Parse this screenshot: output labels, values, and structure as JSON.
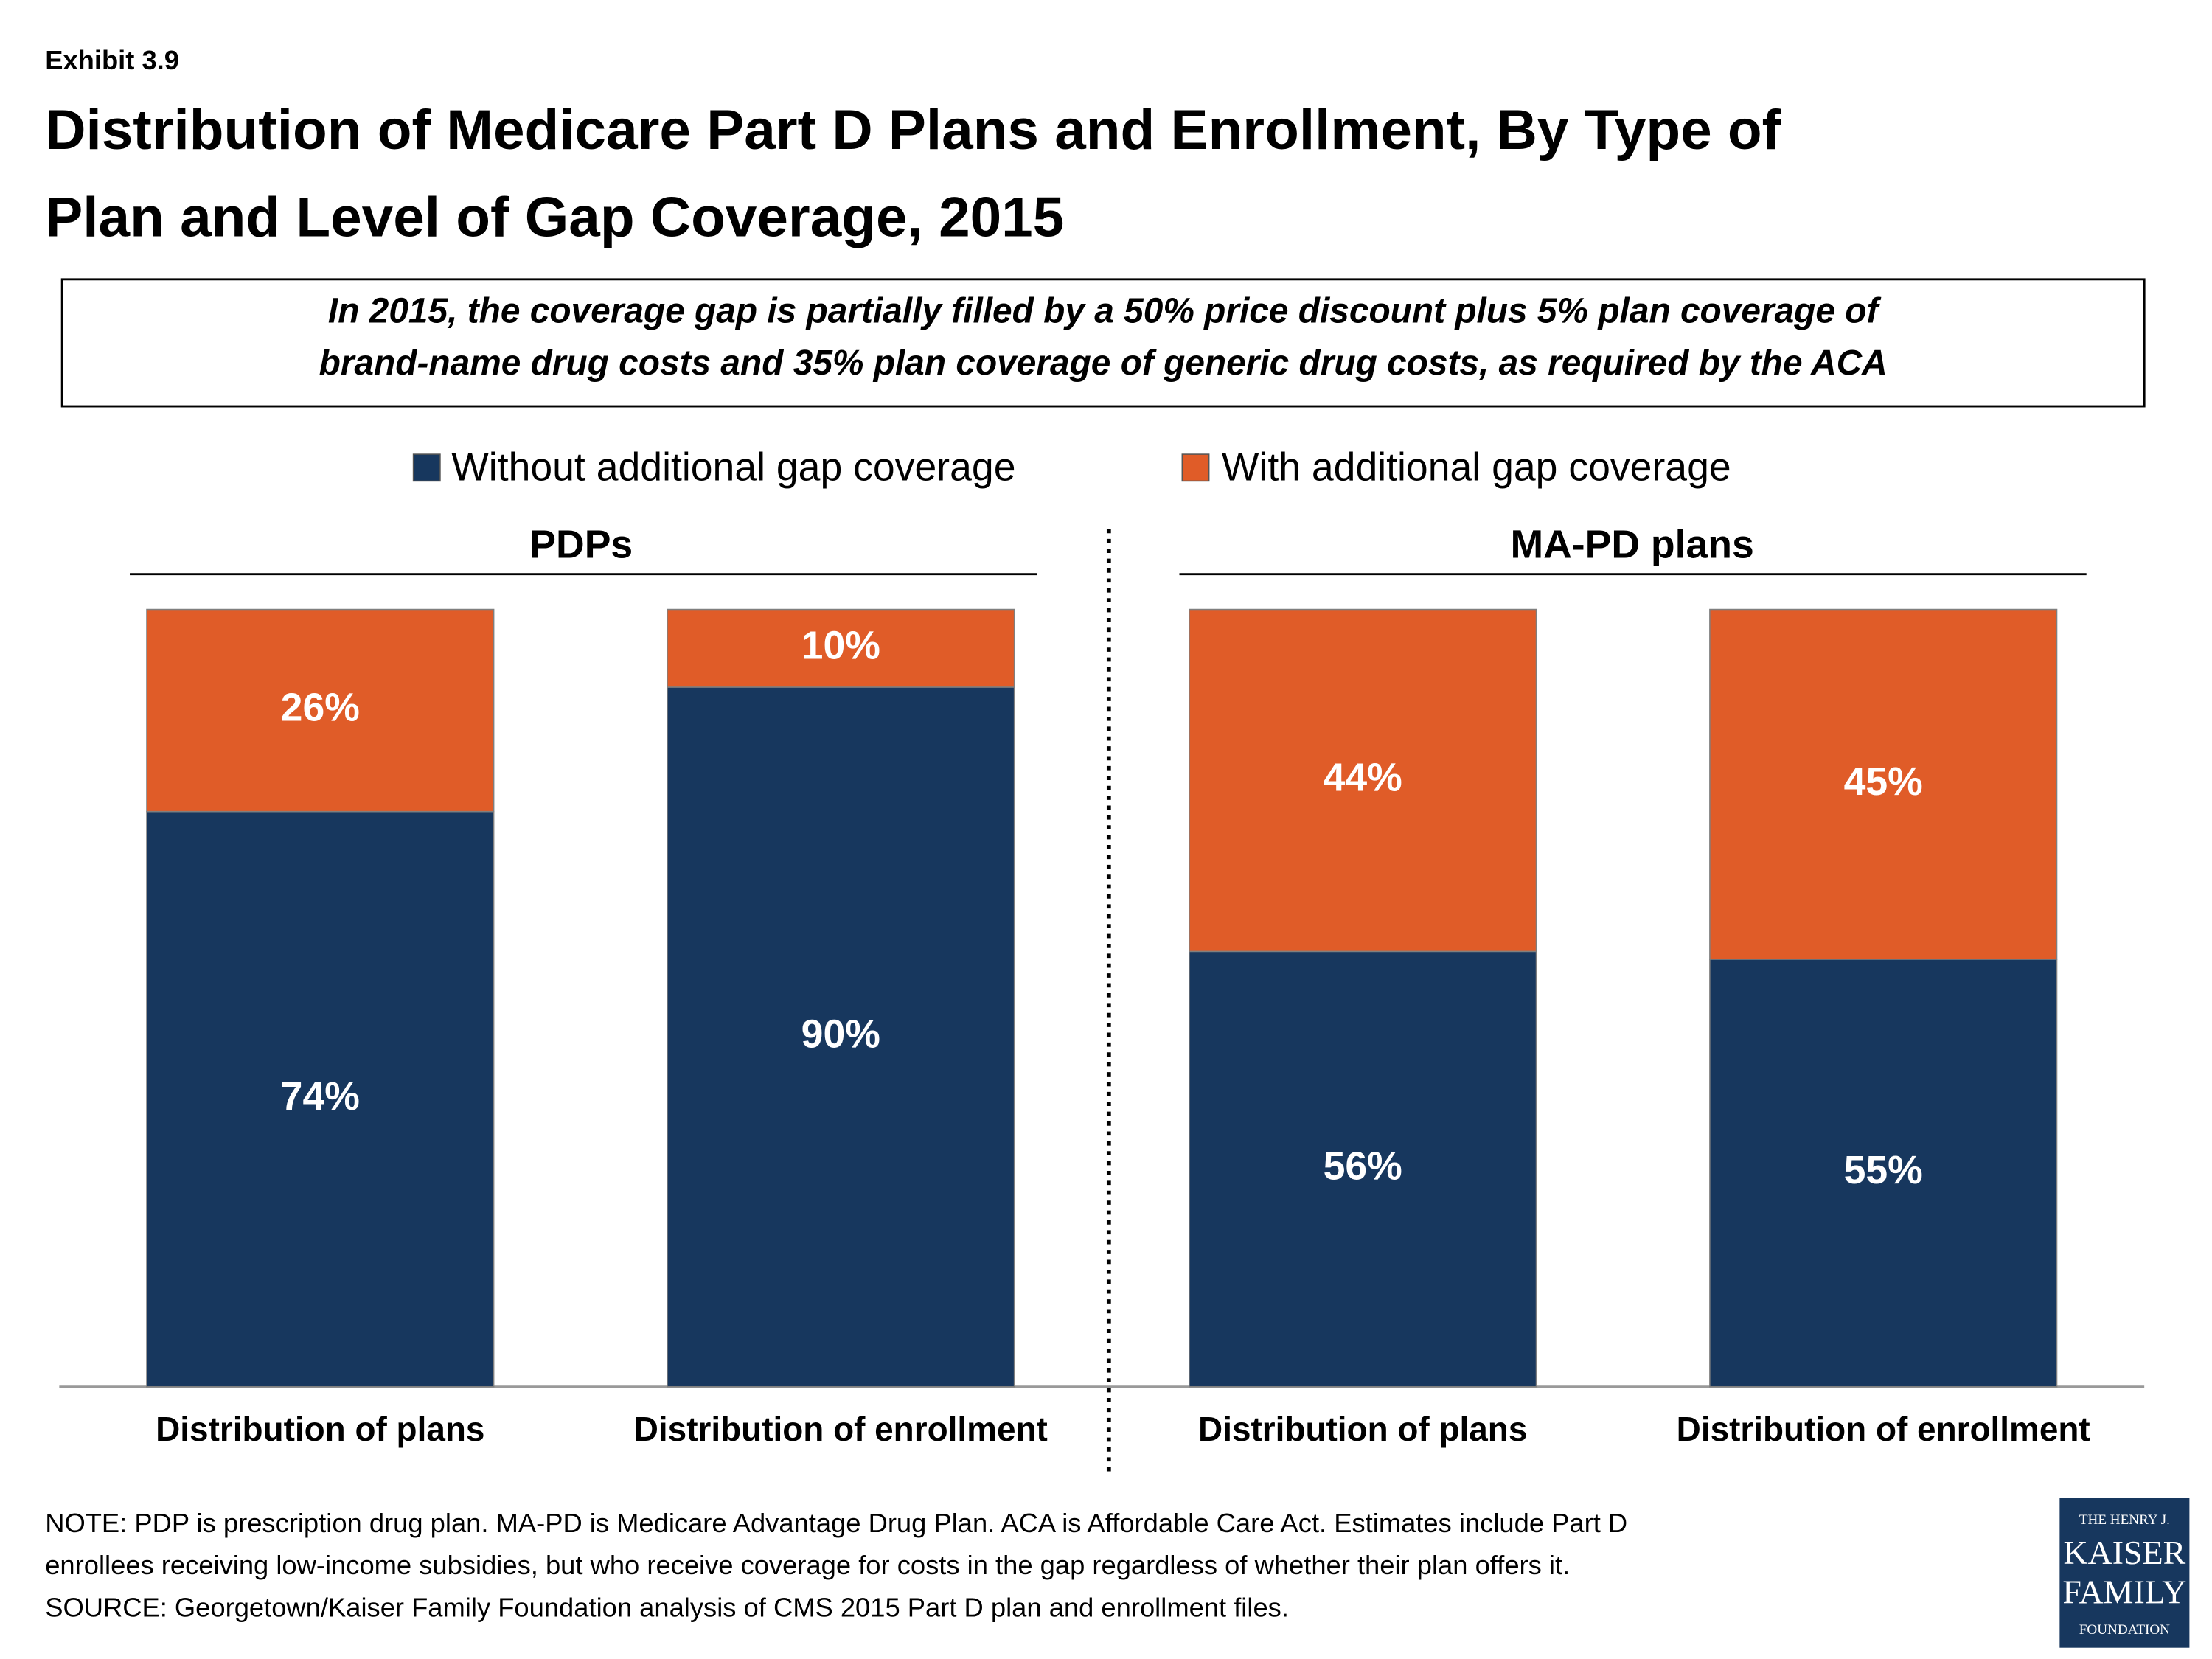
{
  "exhibit": "Exhibit 3.9",
  "chart_data": {
    "type": "stacked_bar",
    "title_lines": [
      "Distribution of Medicare Part D Plans and Enrollment, By Type of",
      "Plan and Level of Gap Coverage, 2015"
    ],
    "subtitle_lines": [
      "In 2015, the coverage gap is partially filled by a 50% price discount plus 5% plan coverage of",
      "brand-name drug costs and 35% plan coverage of generic drug costs, as required by the ACA"
    ],
    "groups": [
      "PDPs",
      "MA-PD plans"
    ],
    "categories": [
      "Distribution of plans",
      "Distribution of enrollment",
      "Distribution of plans",
      "Distribution of enrollment"
    ],
    "series": [
      {
        "name": "Without additional gap coverage",
        "color": "#17375e",
        "values": [
          74,
          90,
          56,
          55
        ],
        "value_labels": [
          "74%",
          "90%",
          "56%",
          "55%"
        ]
      },
      {
        "name": "With additional gap coverage",
        "color": "#e05c28",
        "values": [
          26,
          10,
          44,
          45
        ],
        "value_labels": [
          "26%",
          "10%",
          "44%",
          "45%"
        ]
      }
    ],
    "ylim": [
      0,
      100
    ]
  },
  "notes": [
    "NOTE: PDP is prescription drug plan. MA-PD is Medicare Advantage Drug Plan. ACA is Affordable Care Act. Estimates include Part D",
    "enrollees receiving low-income subsidies, but who receive coverage for costs in the gap regardless of whether their plan offers it.",
    "SOURCE: Georgetown/Kaiser Family Foundation analysis of CMS 2015 Part D plan and enrollment files."
  ],
  "logo": [
    "THE HENRY J.",
    "KAISER",
    "FAMILY",
    "FOUNDATION"
  ]
}
